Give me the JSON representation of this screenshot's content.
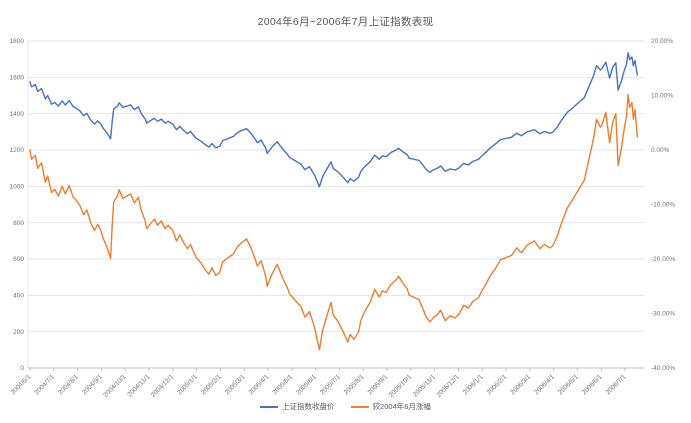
{
  "title": "2004年6月~2006年7月上证指数表现",
  "colors": {
    "series_close": "#4472C4",
    "series_pct": "#ED7D31",
    "gridline": "#E5E5E5",
    "axis_line": "#BFBFBF",
    "axis_text": "#737373",
    "title_text": "#595959"
  },
  "legend": {
    "items": [
      {
        "label": "上证指数收盘价",
        "color": "#4472C4"
      },
      {
        "label": "较2004年6月涨幅",
        "color": "#ED7D31"
      }
    ]
  },
  "chart_data": {
    "type": "line",
    "title": "2004年6月~2006年7月上证指数表现",
    "grid": "horizontal",
    "legend_position": "bottom",
    "x_axis": {
      "tick_labels": [
        "2004/6/1",
        "2004/7/1",
        "2004/8/1",
        "2004/9/1",
        "2004/10/1",
        "2004/11/1",
        "2004/12/1",
        "2005/1/1",
        "2005/2/1",
        "2005/3/1",
        "2005/4/1",
        "2005/5/1",
        "2005/6/1",
        "2005/7/1",
        "2005/8/1",
        "2005/9/1",
        "2005/10/1",
        "2005/11/1",
        "2005/12/1",
        "2006/1/1",
        "2006/2/1",
        "2006/3/1",
        "2006/4/1",
        "2006/5/1",
        "2006/6/1",
        "2006/7/1"
      ]
    },
    "left_axis": {
      "min": 0,
      "max": 1800,
      "step": 200,
      "tick_labels": [
        "0",
        "200",
        "400",
        "600",
        "800",
        "1000",
        "1200",
        "1400",
        "1600",
        "1800"
      ]
    },
    "right_axis": {
      "min_pct": -40,
      "max_pct": 20,
      "step_pct": 10,
      "tick_labels": [
        "20.00%",
        "10.00%",
        "0.00%",
        "-10.00%",
        "-20.00%",
        "-30.00%",
        "-40.00%"
      ]
    },
    "series": [
      {
        "name": "上证指数收盘价",
        "axis": "left",
        "color": "#4472C4",
        "points": [
          [
            "2004/6/1",
            1575
          ],
          [
            "2004/6/3",
            1548
          ],
          [
            "2004/6/8",
            1560
          ],
          [
            "2004/6/11",
            1522
          ],
          [
            "2004/6/16",
            1538
          ],
          [
            "2004/6/21",
            1482
          ],
          [
            "2004/6/24",
            1500
          ],
          [
            "2004/6/29",
            1452
          ],
          [
            "2004/7/2",
            1462
          ],
          [
            "2004/7/7",
            1442
          ],
          [
            "2004/7/12",
            1470
          ],
          [
            "2004/7/16",
            1448
          ],
          [
            "2004/7/21",
            1472
          ],
          [
            "2004/7/26",
            1440
          ],
          [
            "2004/7/30",
            1430
          ],
          [
            "2004/8/4",
            1415
          ],
          [
            "2004/8/9",
            1388
          ],
          [
            "2004/8/13",
            1402
          ],
          [
            "2004/8/18",
            1365
          ],
          [
            "2004/8/23",
            1342
          ],
          [
            "2004/8/27",
            1360
          ],
          [
            "2004/8/31",
            1345
          ],
          [
            "2004/9/3",
            1322
          ],
          [
            "2004/9/8",
            1295
          ],
          [
            "2004/9/13",
            1262
          ],
          [
            "2004/9/15",
            1352
          ],
          [
            "2004/9/17",
            1425
          ],
          [
            "2004/9/22",
            1442
          ],
          [
            "2004/9/24",
            1460
          ],
          [
            "2004/9/29",
            1435
          ],
          [
            "2004/10/8",
            1448
          ],
          [
            "2004/10/13",
            1422
          ],
          [
            "2004/10/18",
            1438
          ],
          [
            "2004/10/22",
            1400
          ],
          [
            "2004/10/27",
            1370
          ],
          [
            "2004/10/29",
            1348
          ],
          [
            "2004/11/3",
            1362
          ],
          [
            "2004/11/8",
            1375
          ],
          [
            "2004/11/12",
            1358
          ],
          [
            "2004/11/17",
            1370
          ],
          [
            "2004/11/22",
            1348
          ],
          [
            "2004/11/26",
            1358
          ],
          [
            "2004/12/1",
            1342
          ],
          [
            "2004/12/6",
            1312
          ],
          [
            "2004/12/10",
            1330
          ],
          [
            "2004/12/15",
            1308
          ],
          [
            "2004/12/20",
            1290
          ],
          [
            "2004/12/24",
            1302
          ],
          [
            "2004/12/31",
            1266
          ],
          [
            "2005/1/7",
            1248
          ],
          [
            "2005/1/12",
            1230
          ],
          [
            "2005/1/17",
            1216
          ],
          [
            "2005/1/21",
            1235
          ],
          [
            "2005/1/26",
            1212
          ],
          [
            "2005/1/31",
            1220
          ],
          [
            "2005/2/4",
            1252
          ],
          [
            "2005/2/18",
            1275
          ],
          [
            "2005/2/23",
            1295
          ],
          [
            "2005/2/28",
            1306
          ],
          [
            "2005/3/4",
            1318
          ],
          [
            "2005/3/9",
            1296
          ],
          [
            "2005/3/15",
            1262
          ],
          [
            "2005/3/18",
            1240
          ],
          [
            "2005/3/23",
            1255
          ],
          [
            "2005/3/29",
            1210
          ],
          [
            "2005/3/31",
            1181
          ],
          [
            "2005/4/6",
            1215
          ],
          [
            "2005/4/13",
            1245
          ],
          [
            "2005/4/20",
            1205
          ],
          [
            "2005/4/26",
            1178
          ],
          [
            "2005/4/29",
            1159
          ],
          [
            "2005/5/13",
            1122
          ],
          [
            "2005/5/18",
            1092
          ],
          [
            "2005/5/24",
            1108
          ],
          [
            "2005/5/31",
            1060
          ],
          [
            "2005/6/3",
            1028
          ],
          [
            "2005/6/6",
            998
          ],
          [
            "2005/6/10",
            1052
          ],
          [
            "2005/6/15",
            1090
          ],
          [
            "2005/6/21",
            1135
          ],
          [
            "2005/6/24",
            1098
          ],
          [
            "2005/6/30",
            1080
          ],
          [
            "2005/7/6",
            1050
          ],
          [
            "2005/7/12",
            1020
          ],
          [
            "2005/7/15",
            1042
          ],
          [
            "2005/7/20",
            1028
          ],
          [
            "2005/7/26",
            1050
          ],
          [
            "2005/7/29",
            1083
          ],
          [
            "2005/8/3",
            1108
          ],
          [
            "2005/8/10",
            1135
          ],
          [
            "2005/8/16",
            1172
          ],
          [
            "2005/8/22",
            1150
          ],
          [
            "2005/8/26",
            1168
          ],
          [
            "2005/8/31",
            1163
          ],
          [
            "2005/9/6",
            1186
          ],
          [
            "2005/9/13",
            1200
          ],
          [
            "2005/9/16",
            1210
          ],
          [
            "2005/9/21",
            1192
          ],
          [
            "2005/9/27",
            1175
          ],
          [
            "2005/9/30",
            1155
          ],
          [
            "2005/10/12",
            1142
          ],
          [
            "2005/10/17",
            1115
          ],
          [
            "2005/10/21",
            1092
          ],
          [
            "2005/10/26",
            1078
          ],
          [
            "2005/10/31",
            1092
          ],
          [
            "2005/11/4",
            1098
          ],
          [
            "2005/11/9",
            1112
          ],
          [
            "2005/11/15",
            1082
          ],
          [
            "2005/11/21",
            1096
          ],
          [
            "2005/11/28",
            1090
          ],
          [
            "2005/12/2",
            1102
          ],
          [
            "2005/12/8",
            1126
          ],
          [
            "2005/12/14",
            1118
          ],
          [
            "2005/12/20",
            1138
          ],
          [
            "2005/12/27",
            1148
          ],
          [
            "2005/12/30",
            1161
          ],
          [
            "2006/1/6",
            1188
          ],
          [
            "2006/1/11",
            1210
          ],
          [
            "2006/1/18",
            1232
          ],
          [
            "2006/1/25",
            1258
          ],
          [
            "2006/2/8",
            1270
          ],
          [
            "2006/2/15",
            1292
          ],
          [
            "2006/2/21",
            1278
          ],
          [
            "2006/2/28",
            1299
          ],
          [
            "2006/3/7",
            1312
          ],
          [
            "2006/3/14",
            1290
          ],
          [
            "2006/3/20",
            1302
          ],
          [
            "2006/3/27",
            1292
          ],
          [
            "2006/3/31",
            1298
          ],
          [
            "2006/4/5",
            1322
          ],
          [
            "2006/4/12",
            1368
          ],
          [
            "2006/4/19",
            1408
          ],
          [
            "2006/4/26",
            1432
          ],
          [
            "2006/4/28",
            1440
          ],
          [
            "2006/5/10",
            1488
          ],
          [
            "2006/5/16",
            1548
          ],
          [
            "2006/5/22",
            1608
          ],
          [
            "2006/5/26",
            1664
          ],
          [
            "2006/5/31",
            1641
          ],
          [
            "2006/6/2",
            1648
          ],
          [
            "2006/6/7",
            1684
          ],
          [
            "2006/6/12",
            1596
          ],
          [
            "2006/6/16",
            1656
          ],
          [
            "2006/6/20",
            1680
          ],
          [
            "2006/6/23",
            1530
          ],
          [
            "2006/6/28",
            1588
          ],
          [
            "2006/6/30",
            1624
          ],
          [
            "2006/7/3",
            1672
          ],
          [
            "2006/7/5",
            1735
          ],
          [
            "2006/7/7",
            1698
          ],
          [
            "2006/7/10",
            1712
          ],
          [
            "2006/7/12",
            1664
          ],
          [
            "2006/7/14",
            1692
          ],
          [
            "2006/7/17",
            1613
          ]
        ]
      },
      {
        "name": "较2004年6月涨幅",
        "axis": "right",
        "color": "#ED7D31",
        "unit": "percent",
        "derived_from_series": 0,
        "formula": "close / close(2004/6/1) - 1",
        "start_value_pct": 0,
        "min_value_pct": -36.6,
        "max_value_pct": 10.2,
        "end_value_pct": 2.4
      }
    ]
  }
}
